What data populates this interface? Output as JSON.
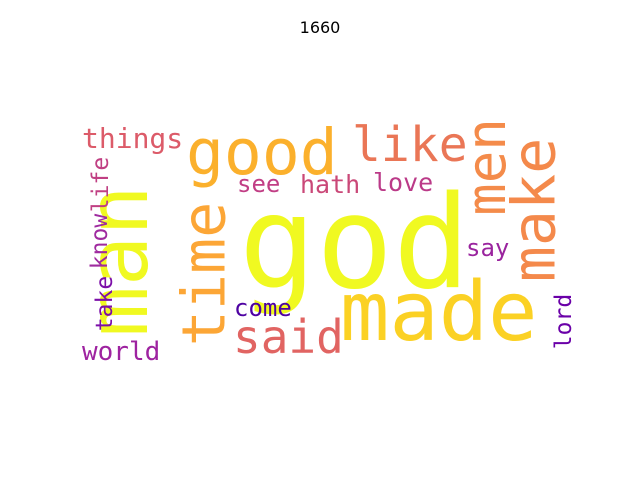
{
  "title": "1660",
  "words": [
    {
      "text": "god",
      "color": "#f0f921",
      "vertical": false
    },
    {
      "text": "man",
      "color": "#f0f921",
      "vertical": true
    },
    {
      "text": "made",
      "color": "#fbd124",
      "vertical": false
    },
    {
      "text": "good",
      "color": "#fbb02c",
      "vertical": false
    },
    {
      "text": "time",
      "color": "#fca636",
      "vertical": true
    },
    {
      "text": "make",
      "color": "#f4894b",
      "vertical": true
    },
    {
      "text": "men",
      "color": "#f48b4a",
      "vertical": true
    },
    {
      "text": "like",
      "color": "#ea7656",
      "vertical": false
    },
    {
      "text": "said",
      "color": "#e16462",
      "vertical": false
    },
    {
      "text": "things",
      "color": "#dc5b69",
      "vertical": false
    },
    {
      "text": "see",
      "color": "#c13e85",
      "vertical": false
    },
    {
      "text": "hath",
      "color": "#ca4878",
      "vertical": false
    },
    {
      "text": "love",
      "color": "#bb3a88",
      "vertical": false
    },
    {
      "text": "life",
      "color": "#c03f83",
      "vertical": true
    },
    {
      "text": "know",
      "color": "#9f2a9f",
      "vertical": true
    },
    {
      "text": "take",
      "color": "#7c0ea8",
      "vertical": true
    },
    {
      "text": "say",
      "color": "#9a249e",
      "vertical": false
    },
    {
      "text": "come",
      "color": "#4e02a2",
      "vertical": false
    },
    {
      "text": "world",
      "color": "#9e23a0",
      "vertical": false
    },
    {
      "text": "lord",
      "color": "#6a00a8",
      "vertical": true
    }
  ]
}
